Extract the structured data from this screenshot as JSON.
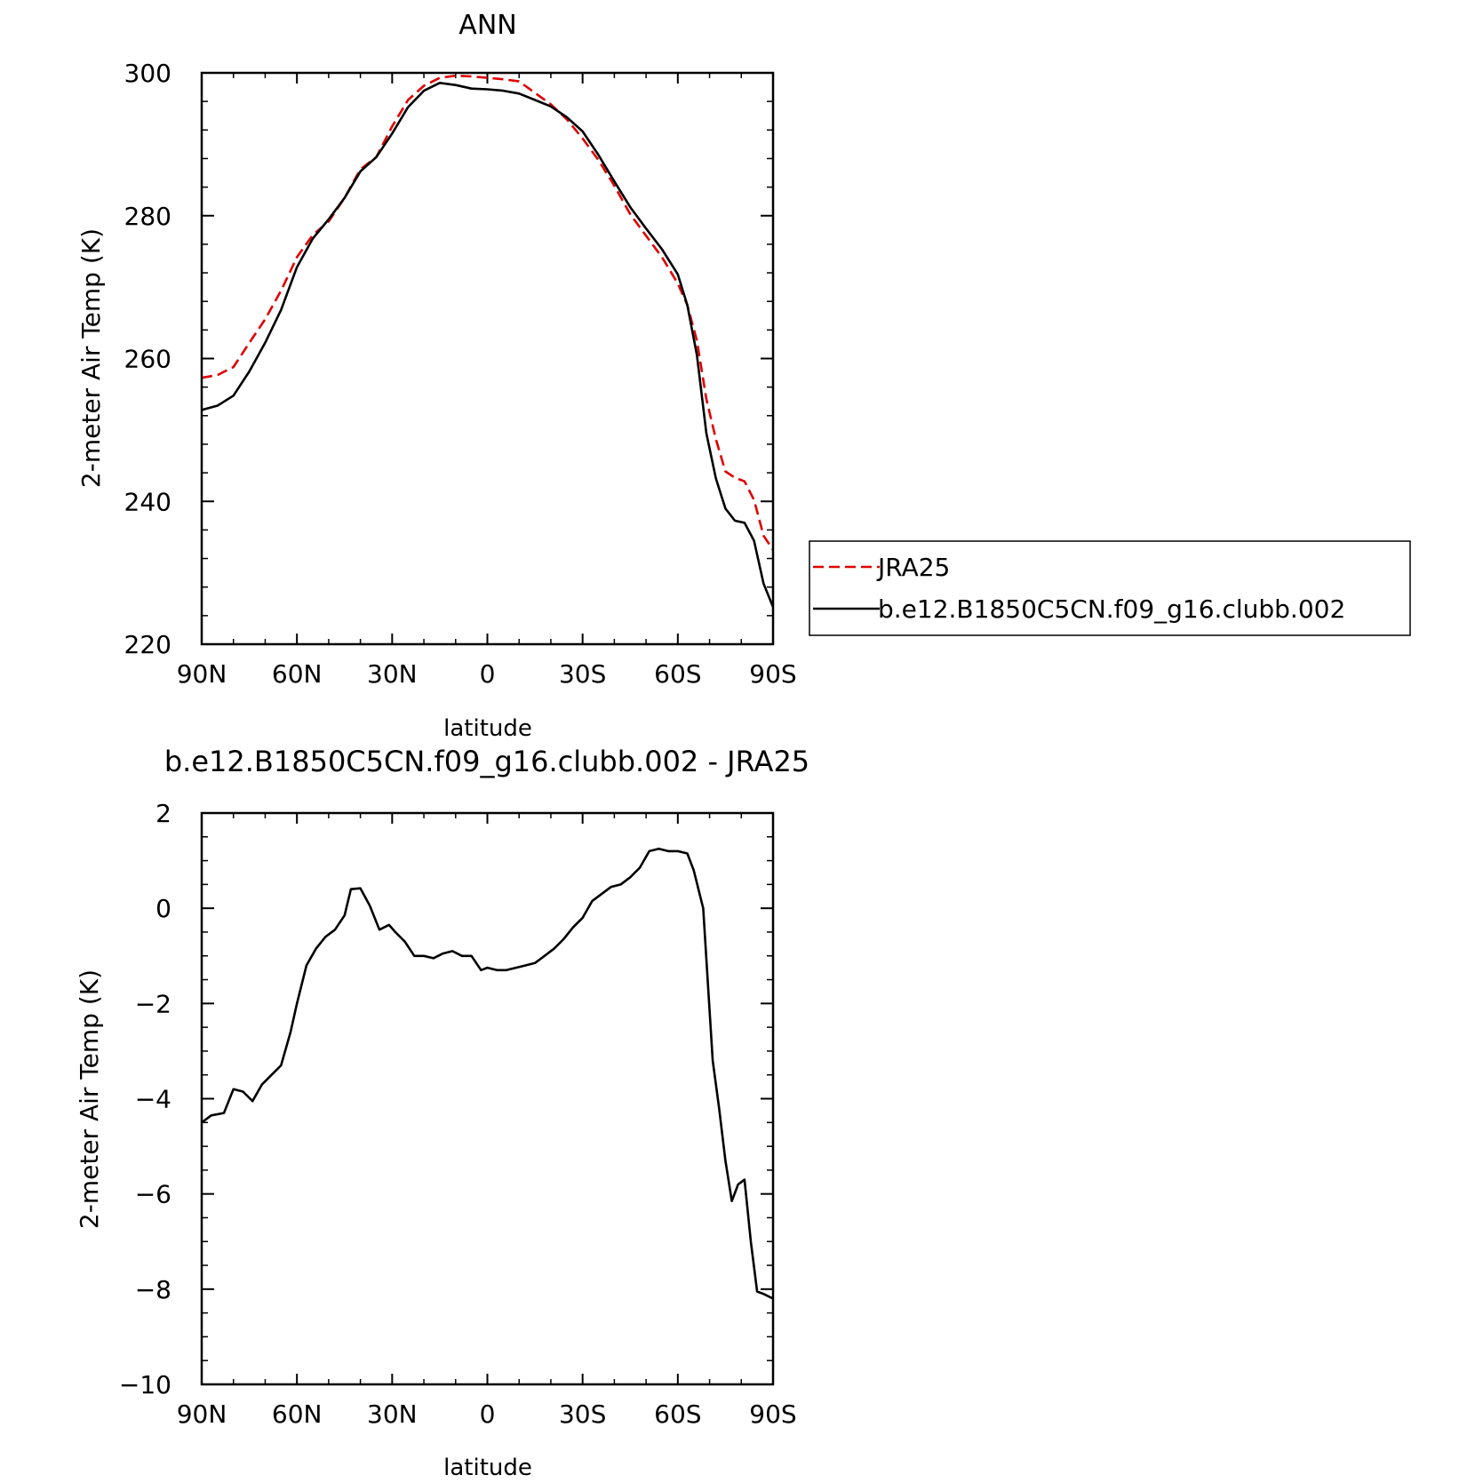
{
  "chart_data": [
    {
      "type": "line",
      "title": "ANN",
      "xlabel": "latitude",
      "ylabel": "2-meter Air Temp (K)",
      "xlim": [
        90,
        -90
      ],
      "ylim": [
        220,
        300
      ],
      "xticks": [
        {
          "value": 90,
          "label": "90N"
        },
        {
          "value": 60,
          "label": "60N"
        },
        {
          "value": 30,
          "label": "30N"
        },
        {
          "value": 0,
          "label": "0"
        },
        {
          "value": -30,
          "label": "30S"
        },
        {
          "value": -60,
          "label": "60S"
        },
        {
          "value": -90,
          "label": "90S"
        }
      ],
      "yticks": [
        {
          "value": 220,
          "label": "220"
        },
        {
          "value": 240,
          "label": "240"
        },
        {
          "value": 260,
          "label": "260"
        },
        {
          "value": 280,
          "label": "280"
        },
        {
          "value": 300,
          "label": "300"
        }
      ],
      "legend": {
        "placement": "right"
      },
      "series": [
        {
          "name": "JRA25",
          "color": "#e00000",
          "dash": true,
          "x": [
            90,
            85,
            80,
            75,
            70,
            65,
            60,
            55,
            50,
            45,
            40,
            35,
            30,
            25,
            20,
            15,
            10,
            5,
            0,
            -5,
            -10,
            -15,
            -20,
            -25,
            -30,
            -35,
            -40,
            -45,
            -50,
            -55,
            -60,
            -63,
            -66,
            -69,
            -72,
            -75,
            -78,
            -81,
            -84,
            -87,
            -90
          ],
          "y": [
            257.3,
            257.7,
            258.8,
            262.2,
            265.5,
            269.5,
            274.2,
            277.3,
            279.2,
            282.5,
            286.5,
            288.2,
            292.5,
            296.2,
            298.2,
            299.3,
            299.6,
            299.5,
            299.3,
            299.1,
            298.8,
            297.2,
            295.6,
            293.5,
            290.8,
            287.8,
            284.2,
            280.2,
            277.2,
            274.2,
            270.5,
            267.5,
            262.5,
            254.3,
            248.7,
            244.2,
            243.3,
            242.8,
            240.2,
            235.2,
            233.2
          ]
        },
        {
          "name": "b.e12.B1850C5CN.f09_g16.clubb.002",
          "color": "#000000",
          "dash": false,
          "x": [
            90,
            85,
            80,
            75,
            70,
            65,
            60,
            55,
            50,
            45,
            40,
            35,
            30,
            25,
            20,
            15,
            10,
            5,
            0,
            -5,
            -10,
            -15,
            -20,
            -25,
            -30,
            -35,
            -40,
            -45,
            -50,
            -55,
            -60,
            -63,
            -66,
            -69,
            -72,
            -75,
            -78,
            -81,
            -84,
            -87,
            -90
          ],
          "y": [
            252.8,
            253.4,
            254.8,
            258.2,
            262.2,
            266.8,
            272.8,
            276.8,
            279.5,
            282.5,
            286.2,
            288.2,
            291.5,
            295.2,
            297.5,
            298.6,
            298.3,
            297.8,
            297.7,
            297.5,
            297.1,
            296.2,
            295.3,
            293.8,
            291.8,
            288.5,
            284.8,
            281.2,
            278.2,
            275.3,
            271.8,
            267.5,
            260.5,
            249.5,
            243.2,
            239.0,
            237.3,
            237.0,
            234.5,
            228.5,
            225.2
          ]
        }
      ]
    },
    {
      "type": "line",
      "title": "b.e12.B1850C5CN.f09_g16.clubb.002 - JRA25",
      "xlabel": "latitude",
      "ylabel": "2-meter Air Temp (K)",
      "xlim": [
        90,
        -90
      ],
      "ylim": [
        -10,
        2
      ],
      "xticks": [
        {
          "value": 90,
          "label": "90N"
        },
        {
          "value": 60,
          "label": "60N"
        },
        {
          "value": 30,
          "label": "30N"
        },
        {
          "value": 0,
          "label": "0"
        },
        {
          "value": -30,
          "label": "30S"
        },
        {
          "value": -60,
          "label": "60S"
        },
        {
          "value": -90,
          "label": "90S"
        }
      ],
      "yticks": [
        {
          "value": -10,
          "label": "−10"
        },
        {
          "value": -8,
          "label": "−8"
        },
        {
          "value": -6,
          "label": "−6"
        },
        {
          "value": -4,
          "label": "−4"
        },
        {
          "value": -2,
          "label": "−2"
        },
        {
          "value": 0,
          "label": "0"
        },
        {
          "value": 2,
          "label": "2"
        }
      ],
      "series": [
        {
          "color": "#000000",
          "dash": false,
          "x": [
            90,
            87,
            83,
            80,
            77,
            74,
            71,
            68,
            65,
            62,
            60,
            57,
            54,
            51,
            48,
            45,
            43,
            40,
            37,
            34,
            31,
            29,
            26,
            23,
            20,
            17,
            14,
            11,
            8,
            5,
            2,
            0,
            -3,
            -6,
            -9,
            -12,
            -15,
            -18,
            -21,
            -24,
            -27,
            -30,
            -33,
            -36,
            -39,
            -42,
            -45,
            -48,
            -51,
            -54,
            -57,
            -60,
            -63,
            -65,
            -68,
            -71,
            -73,
            -75,
            -77,
            -79,
            -81,
            -83,
            -85,
            -87,
            -90
          ],
          "y": [
            -4.5,
            -4.35,
            -4.3,
            -3.8,
            -3.85,
            -4.05,
            -3.7,
            -3.5,
            -3.3,
            -2.6,
            -2.0,
            -1.2,
            -0.85,
            -0.6,
            -0.45,
            -0.15,
            0.4,
            0.42,
            0.05,
            -0.45,
            -0.35,
            -0.5,
            -0.7,
            -1.0,
            -1.0,
            -1.05,
            -0.95,
            -0.9,
            -1.0,
            -1.0,
            -1.3,
            -1.25,
            -1.3,
            -1.3,
            -1.25,
            -1.2,
            -1.15,
            -1.0,
            -0.85,
            -0.65,
            -0.4,
            -0.2,
            0.15,
            0.3,
            0.45,
            0.5,
            0.65,
            0.85,
            1.2,
            1.25,
            1.2,
            1.2,
            1.15,
            0.8,
            0.0,
            -3.2,
            -4.2,
            -5.3,
            -6.15,
            -5.8,
            -5.7,
            -7.0,
            -8.05,
            -8.1,
            -8.2
          ]
        }
      ]
    }
  ],
  "legend_items": [
    "JRA25",
    "b.e12.B1850C5CN.f09_g16.clubb.002"
  ]
}
